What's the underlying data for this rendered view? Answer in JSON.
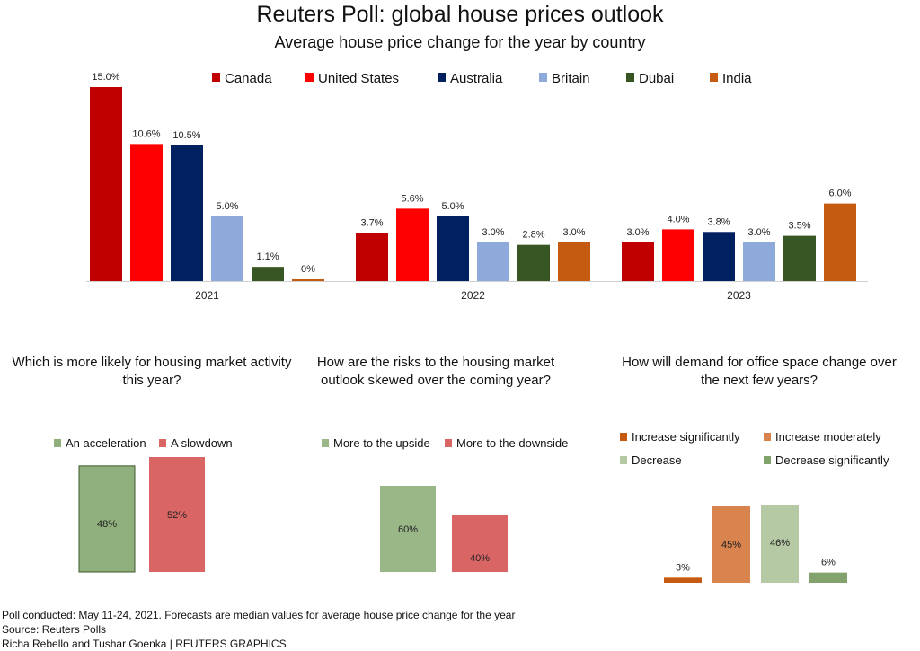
{
  "title": "Reuters Poll: global house prices outlook",
  "subtitle": "Average house price change for the year by country",
  "colors": {
    "Canada": "#c00000",
    "United States": "#ff0000",
    "Australia": "#002060",
    "Britain": "#8eaadb",
    "Dubai": "#375623",
    "India": "#c55a11"
  },
  "chart_data": [
    {
      "type": "bar",
      "categories": [
        "2021",
        "2022",
        "2023"
      ],
      "series": [
        {
          "name": "Canada",
          "values": [
            15.0,
            3.7,
            3.0
          ],
          "labels": [
            "15.0%",
            "3.7%",
            "3.0%"
          ]
        },
        {
          "name": "United States",
          "values": [
            10.6,
            5.6,
            4.0
          ],
          "labels": [
            "10.6%",
            "5.6%",
            "4.0%"
          ]
        },
        {
          "name": "Australia",
          "values": [
            10.5,
            5.0,
            3.8
          ],
          "labels": [
            "10.5%",
            "5.0%",
            "3.8%"
          ]
        },
        {
          "name": "Britain",
          "values": [
            5.0,
            3.0,
            3.0
          ],
          "labels": [
            "5.0%",
            "3.0%",
            "3.0%"
          ]
        },
        {
          "name": "Dubai",
          "values": [
            1.1,
            2.8,
            3.5
          ],
          "labels": [
            "1.1%",
            "2.8%",
            "3.5%"
          ]
        },
        {
          "name": "India",
          "values": [
            0,
            3.0,
            6.0
          ],
          "labels": [
            "0%",
            "3.0%",
            "6.0%"
          ]
        }
      ],
      "legend_position": "top",
      "grid": false
    },
    {
      "type": "bar",
      "title": "Which is more likely for housing market activity this year?",
      "categories": [
        "An acceleration",
        "A slowdown"
      ],
      "values": [
        48,
        52
      ],
      "labels": [
        "48%",
        "52%"
      ],
      "colors": [
        "#8faf7c",
        "#d96565"
      ],
      "legend_position": "top"
    },
    {
      "type": "bar",
      "title": "How are the risks to the housing market outlook skewed over the coming year?",
      "categories": [
        "More to the upside",
        "More to the downside"
      ],
      "values": [
        60,
        40
      ],
      "labels": [
        "60%",
        "40%"
      ],
      "colors": [
        "#9ab787",
        "#d96565"
      ],
      "legend_position": "top"
    },
    {
      "type": "bar",
      "title": "How will demand for office space change over the next few years?",
      "categories": [
        "Increase significantly",
        "Increase moderately",
        "Decrease",
        "Decrease significantly"
      ],
      "values": [
        3,
        45,
        46,
        6
      ],
      "labels": [
        "3%",
        "45%",
        "46%",
        "6%"
      ],
      "colors": [
        "#c55a11",
        "#d9834f",
        "#b4c9a4",
        "#82a36b"
      ],
      "legend_position": "top"
    }
  ],
  "footer": {
    "note": "Poll conducted: May 11-24, 2021. Forecasts are median values for average house price change for the year",
    "source": "Source: Reuters Polls",
    "credit": "Richa Rebello and Tushar Goenka | REUTERS GRAPHICS"
  }
}
